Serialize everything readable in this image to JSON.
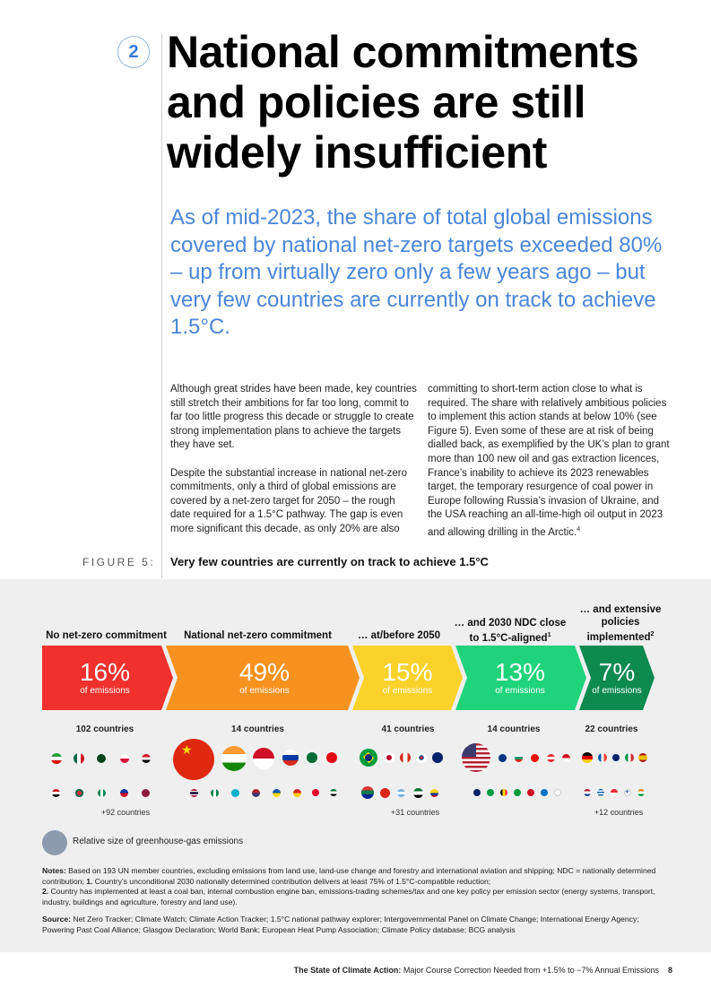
{
  "section_number": "2",
  "title": "National commitments and policies are still widely insufficient",
  "lead": "As of mid-2023, the share of total global emissions covered by national net-zero targets exceeded 80% – up from virtually zero only a few years ago – but very few countries are currently on track to achieve 1.5°C.",
  "body_col1": [
    "Although great strides have been made, key countries still stretch their ambitions for far too long, commit to far too little progress this decade or struggle to create strong implementation plans to achieve the targets they have set.",
    "Despite the substantial increase in national net-zero commitments, only a third of global emissions are covered by a net-zero target for 2050 – the rough date required for a 1.5°C pathway. The gap is even more significant this decade, as only 20% are also"
  ],
  "body_col2": "committing to short-term action close to what is required. The share with relatively ambitious policies to implement this action stands at below 10% (see Figure 5). Even some of these are at risk of being dialled back, as exemplified by the UK’s plan to grant more than 100 new oil and gas extraction licences, France’s inability to achieve its 2023 renewables target, the temporary resurgence of coal power in Europe following Russia’s invasion of Ukraine, and the USA reaching an all-time-high oil output in 2023 and allowing drilling in the Arctic.",
  "body_col2_ref": "4",
  "figure": {
    "label": "FIGURE 5:",
    "title": "Very few countries are currently on track to achieve 1.5°C"
  },
  "chart_data": {
    "type": "funnel",
    "unit_label": "of emissions",
    "stages": [
      {
        "heading": "No net-zero commitment",
        "sup": "",
        "percent": "16%",
        "value": 16,
        "countries": "102 countries",
        "more": "+92 countries",
        "color": "#f0312d"
      },
      {
        "heading": "National net-zero commitment",
        "sup": "",
        "percent": "49%",
        "value": 49,
        "countries": "14 countries",
        "more": "",
        "color": "#f7921e"
      },
      {
        "heading": "… at/before 2050",
        "sup": "",
        "percent": "15%",
        "value": 15,
        "countries": "41 countries",
        "more": "+31 countries",
        "color": "#fbd22a"
      },
      {
        "heading": "… and 2030 NDC close to 1.5°C-aligned",
        "sup": "1",
        "percent": "13%",
        "value": 13,
        "countries": "14 countries",
        "more": "",
        "color": "#1fd37a"
      },
      {
        "heading": "… and extensive policies implemented",
        "sup": "2",
        "percent": "7%",
        "value": 7,
        "countries": "22 countries",
        "more": "+12 countries",
        "color": "#0d8a50"
      }
    ],
    "legend": "Relative size of greenhouse-gas emissions"
  },
  "notes": {
    "notes_label": "Notes:",
    "notes_text": " Based on 193 UN member countries, excluding emissions from land use, land-use change and forestry and international aviation and shipping; NDC = nationally determined contribution;",
    "note1_num": "1.",
    "note1_text": " Country’s unconditional 2030 nationally determined contribution delivers at least 75% of 1.5°C-compatible reduction;",
    "note2_num": "2.",
    "note2_text": " Country has implemented at least a coal ban, internal combustion engine ban, emissions-trading schemes/tax and one key policy per emission sector (energy systems, transport, industry, buildings and agriculture, forestry and land use).",
    "source_label": "Source:",
    "source_text": " Net Zero Tracker; Climate Watch; Climate Action Tracker; 1.5°C national pathway explorer; Intergovernmental Panel on Climate Change; International Energy Agency; Powering Past Coal Alliance; Glasgow Declaration; World Bank; European Heat Pump Association; Climate Policy database; BCG analysis"
  },
  "footer": {
    "title": "The State of Climate Action:",
    "subtitle": " Major Course Correction Needed from +1.5% to −7% Annual Emissions",
    "page": "8"
  },
  "colors": {
    "accent_blue": "#4a86d8",
    "panel_bg": "#efefef",
    "legend_dot": "#8e9aae"
  }
}
